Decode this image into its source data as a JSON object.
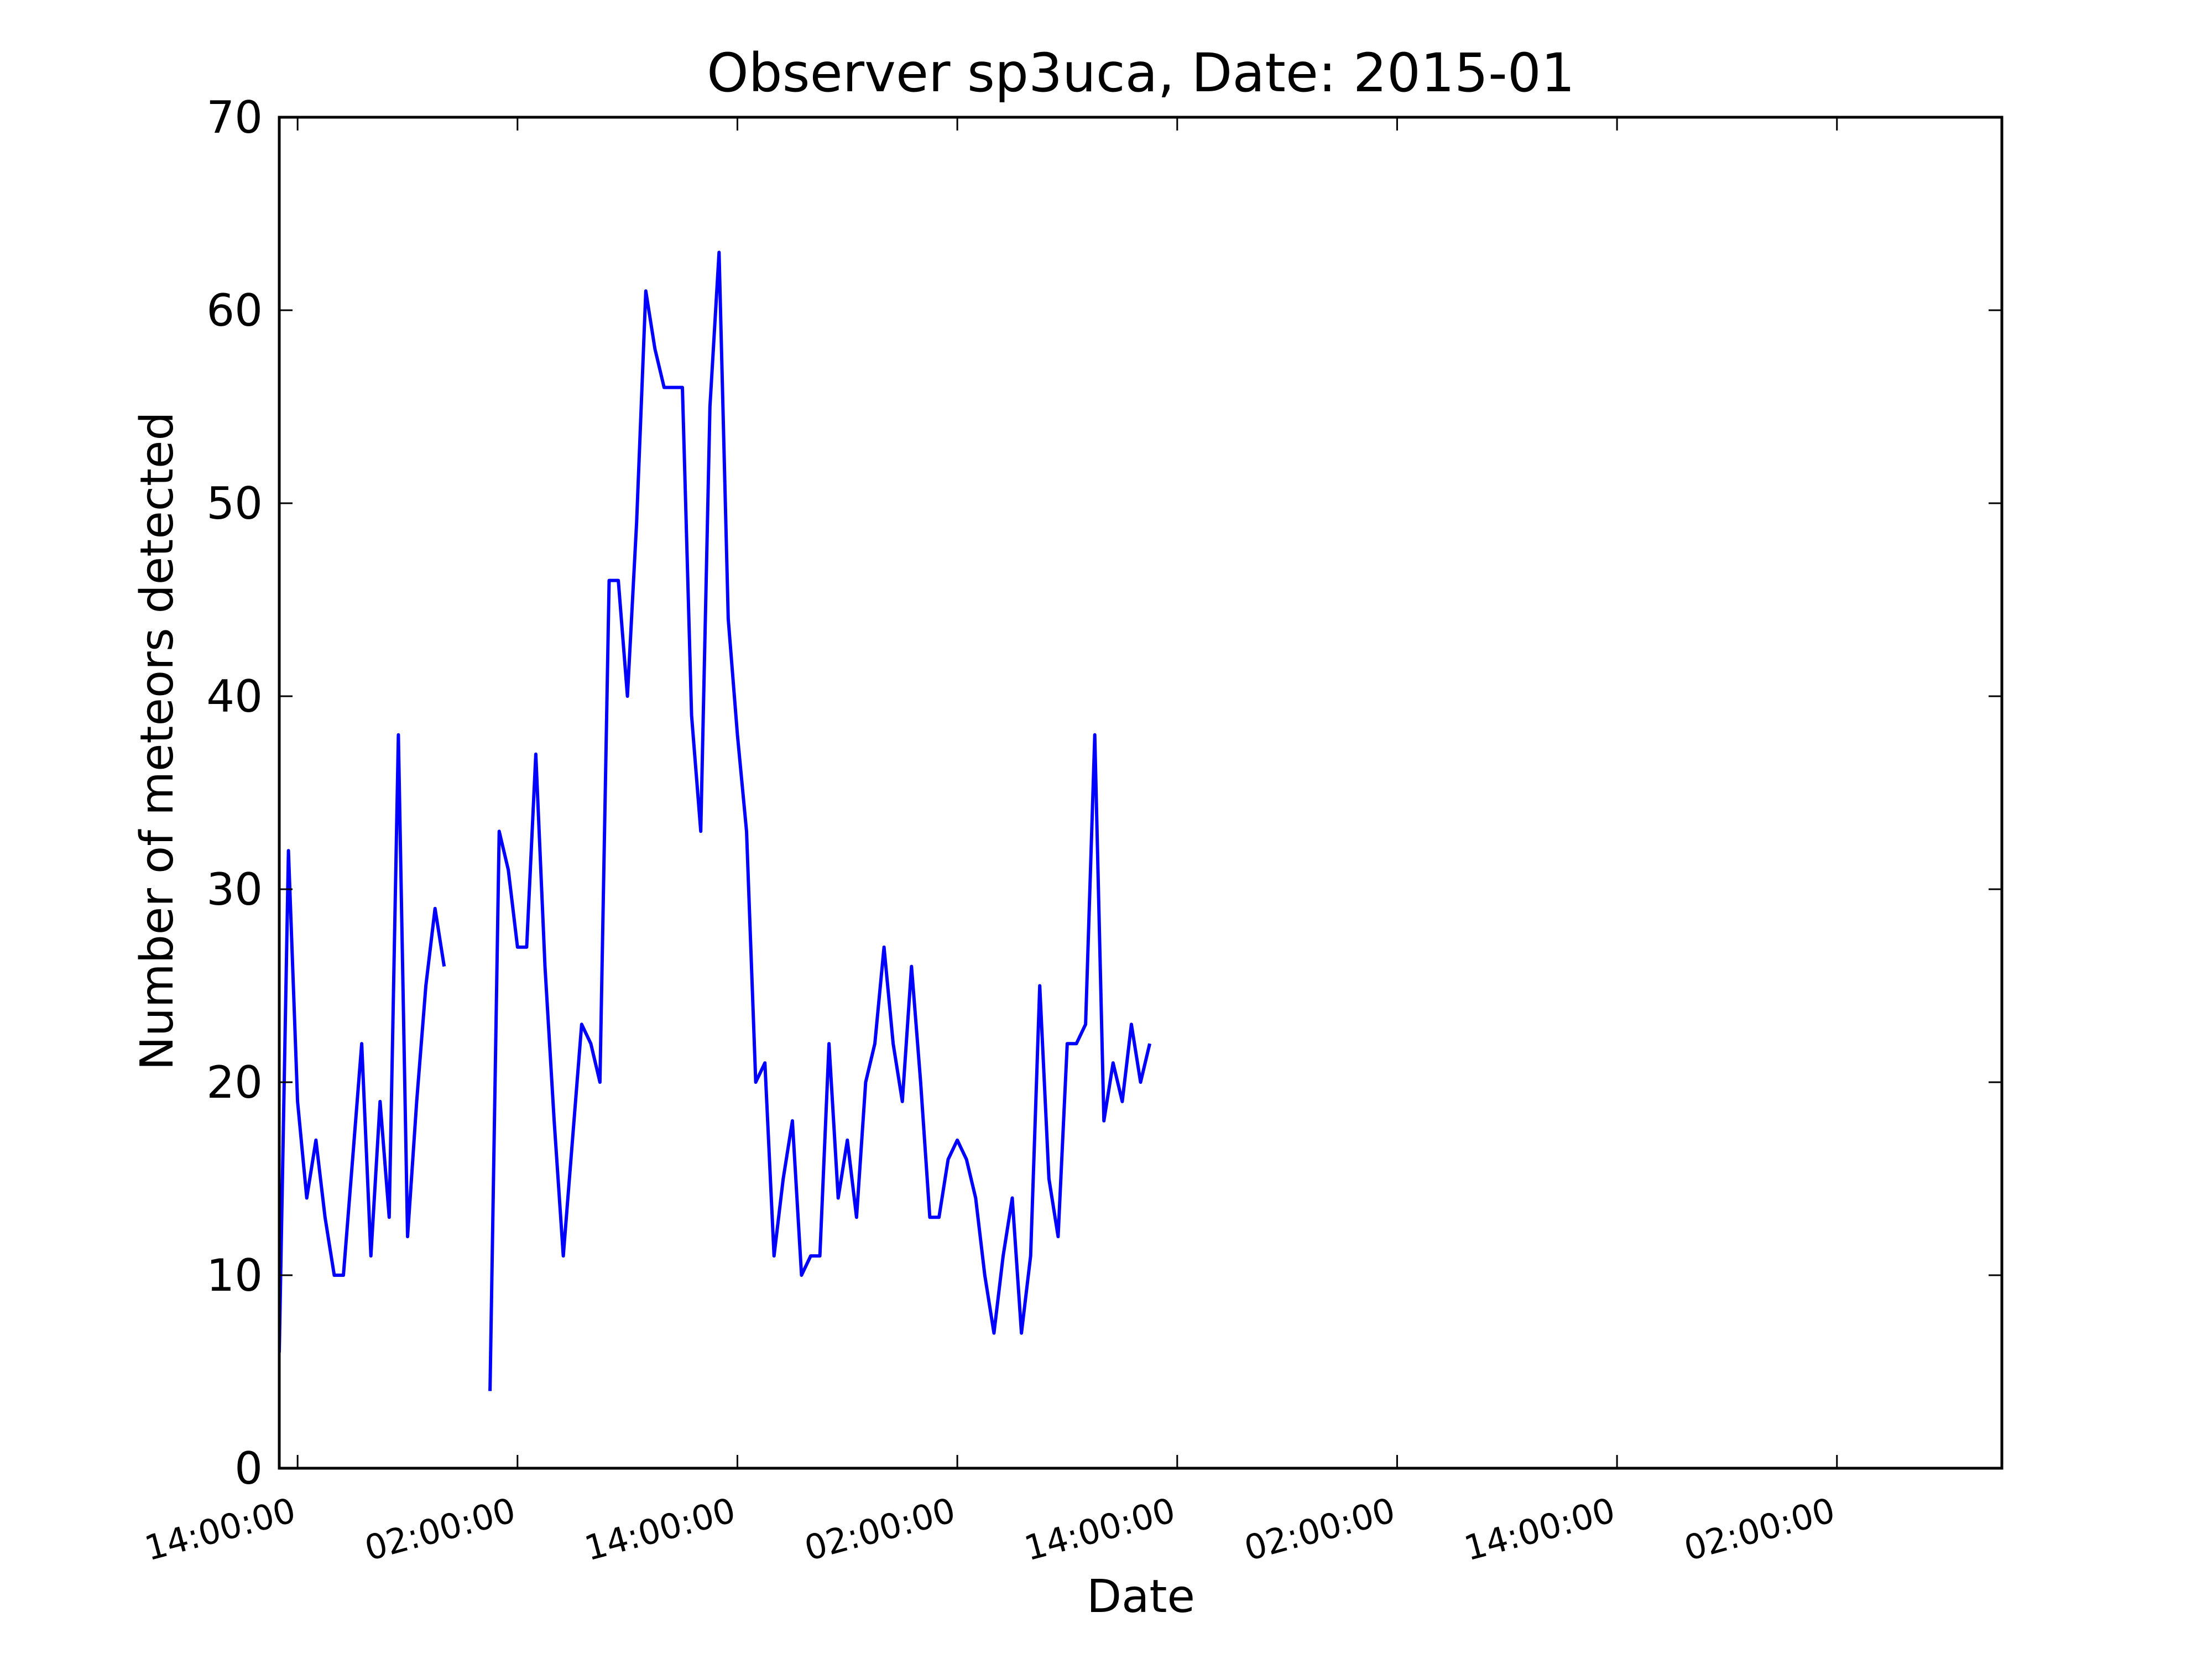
{
  "chart_data": {
    "type": "line",
    "title": "Observer sp3uca, Date: 2015-01",
    "xlabel": "Date",
    "ylabel": "Number of meteors detected",
    "ylim": [
      0,
      70
    ],
    "yticks": [
      0,
      10,
      20,
      30,
      40,
      50,
      60,
      70
    ],
    "xlim": [
      -1,
      93
    ],
    "x_unit": "hours",
    "x_tick_hours": [
      0,
      12,
      24,
      36,
      48,
      60,
      72,
      84
    ],
    "x_tick_labels": [
      "14:00:00",
      "02:00:00",
      "14:00:00",
      "02:00:00",
      "14:00:00",
      "02:00:00",
      "14:00:00",
      "02:00:00"
    ],
    "grid": false,
    "line_color": "#0000ff",
    "series": [
      {
        "x_start_hour": -1,
        "x_step_hours": 0.5,
        "values": [
          6,
          32,
          19,
          14,
          17,
          13,
          10,
          10,
          16,
          22,
          11,
          19,
          13,
          38,
          12,
          19,
          25,
          29,
          26,
          null,
          null,
          null,
          null,
          4,
          33,
          31,
          27,
          27,
          37,
          26,
          18,
          11,
          17,
          23,
          22,
          20,
          46,
          46,
          40,
          49,
          61,
          58,
          56,
          56,
          56,
          39,
          33,
          55,
          63,
          44,
          38,
          33,
          20,
          21,
          11,
          15,
          18,
          10,
          11,
          11,
          22,
          14,
          17,
          13,
          20,
          22,
          27,
          22,
          19,
          26,
          20,
          13,
          13,
          16,
          17,
          16,
          14,
          10,
          7,
          11,
          14,
          7,
          11,
          25,
          15,
          12,
          22,
          22,
          23,
          38,
          18,
          21,
          19,
          23,
          20,
          22
        ]
      }
    ]
  }
}
